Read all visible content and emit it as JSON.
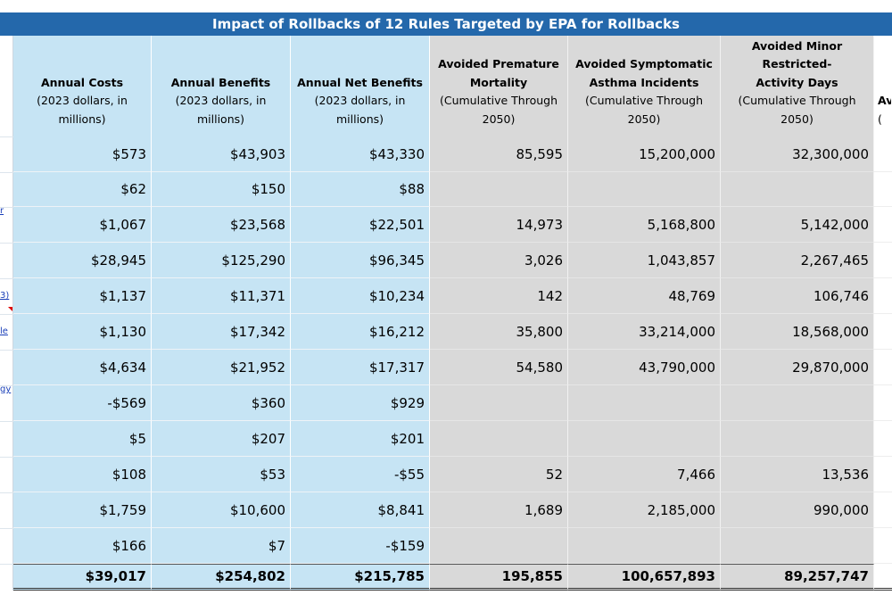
{
  "title": "Impact of Rollbacks of 12 Rules Targeted by EPA for Rollbacks",
  "table": {
    "headers": [
      {
        "bold": [
          "Annual Costs"
        ],
        "sub": [
          "(2023 dollars, in",
          "millions)"
        ]
      },
      {
        "bold": [
          "Annual Benefits"
        ],
        "sub": [
          "(2023 dollars, in",
          "millions)"
        ]
      },
      {
        "bold": [
          "Annual Net Benefits"
        ],
        "sub": [
          "(2023 dollars, in",
          "millions)"
        ]
      },
      {
        "bold": [
          "Avoided Premature",
          "Mortality"
        ],
        "sub": [
          "(Cumulative Through",
          "2050)"
        ]
      },
      {
        "bold": [
          "Avoided Symptomatic",
          "Asthma Incidents"
        ],
        "sub": [
          "(Cumulative Through",
          "2050)"
        ]
      },
      {
        "bold": [
          "Avoided Minor",
          "Restricted-",
          "Activity Days"
        ],
        "sub": [
          "(Cumulative Through",
          "2050)"
        ]
      },
      {
        "bold": [
          "Av"
        ],
        "sub": [
          "("
        ]
      }
    ],
    "rows": [
      [
        "$573",
        "$43,903",
        "$43,330",
        "85,595",
        "15,200,000",
        "32,300,000"
      ],
      [
        "$62",
        "$150",
        "$88",
        null,
        null,
        null
      ],
      [
        "$1,067",
        "$23,568",
        "$22,501",
        "14,973",
        "5,168,800",
        "5,142,000"
      ],
      [
        "$28,945",
        "$125,290",
        "$96,345",
        "3,026",
        "1,043,857",
        "2,267,465"
      ],
      [
        "$1,137",
        "$11,371",
        "$10,234",
        "142",
        "48,769",
        "106,746"
      ],
      [
        "$1,130",
        "$17,342",
        "$16,212",
        "35,800",
        "33,214,000",
        "18,568,000"
      ],
      [
        "$4,634",
        "$21,952",
        "$17,317",
        "54,580",
        "43,790,000",
        "29,870,000"
      ],
      [
        "-$569",
        "$360",
        "$929",
        null,
        null,
        null
      ],
      [
        "$5",
        "$207",
        "$201",
        null,
        null,
        null
      ],
      [
        "$108",
        "$53",
        "-$55",
        "52",
        "7,466",
        "13,536"
      ],
      [
        "$1,759",
        "$10,600",
        "$8,841",
        "1,689",
        "2,185,000",
        "990,000"
      ],
      [
        "$166",
        "$7",
        "-$159",
        null,
        null,
        null
      ]
    ],
    "total": [
      "$39,017",
      "$254,802",
      "$215,785",
      "195,855",
      "100,657,893",
      "89,257,747"
    ],
    "left_fragments": [
      "r",
      "3)",
      "le",
      "gy"
    ]
  }
}
